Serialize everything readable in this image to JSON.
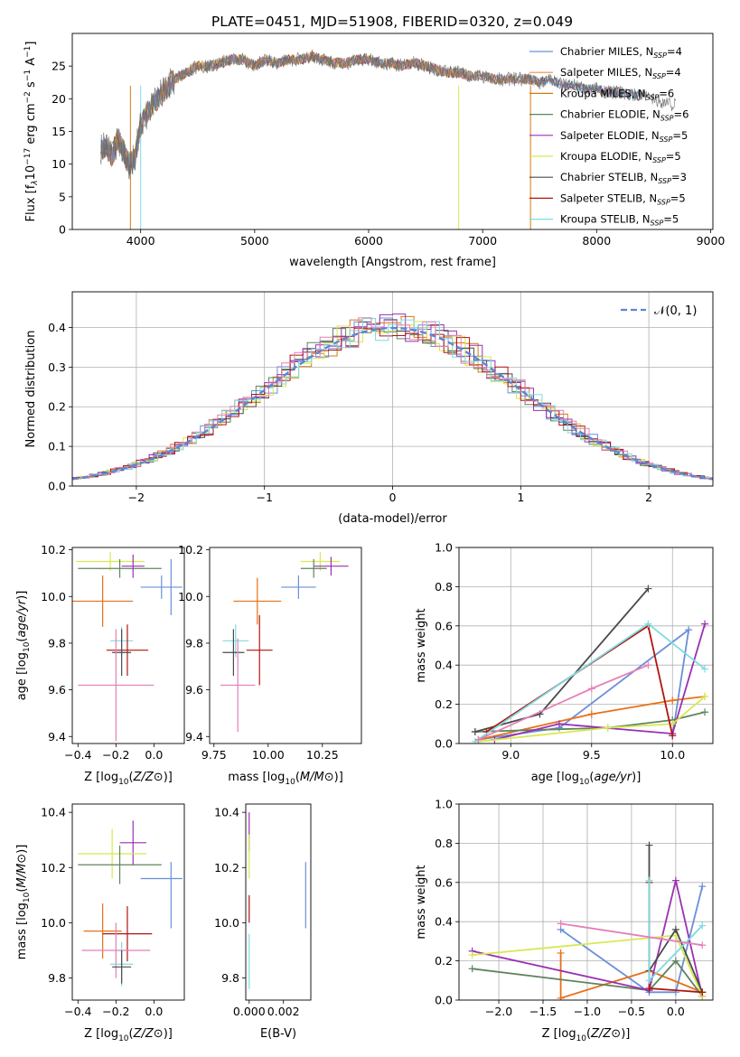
{
  "title": "PLATE=0451, MJD=51908, FIBERID=0320, z=0.049",
  "colors": [
    "#6a8fd8",
    "#ee8a45",
    "#d47a10",
    "#5f845f",
    "#9b2fb3",
    "#d8e84f",
    "#4b4b4b",
    "#b0150f",
    "#7edbe0",
    "#e57fb8",
    "#e87018"
  ],
  "chart_data": [
    {
      "type": "line",
      "panel": "spectrum",
      "title": "PLATE=0451, MJD=51908, FIBERID=0320, z=0.049",
      "xlabel": "wavelength [Angstrom, rest frame]",
      "ylabel_parts": [
        "Flux [f",
        "λ",
        "10",
        "−17",
        " erg cm",
        "−2",
        " s",
        "−1",
        " A",
        "−1",
        "]"
      ],
      "xlim": [
        3400,
        9020
      ],
      "ylim": [
        0,
        30
      ],
      "xticks": [
        "4000",
        "5000",
        "6000",
        "7000",
        "8000",
        "9000"
      ],
      "xtick_values": [
        4000,
        5000,
        6000,
        7000,
        8000,
        9000
      ],
      "yticks": [
        "0",
        "5",
        "10",
        "15",
        "20",
        "25"
      ],
      "ytick_values": [
        0,
        5,
        10,
        15,
        20,
        25
      ],
      "observed_flux": {
        "x": [
          3650,
          3700,
          3750,
          3800,
          3850,
          3900,
          3950,
          4000,
          4100,
          4200,
          4300,
          4400,
          4500,
          4600,
          4700,
          4800,
          4900,
          5000,
          5100,
          5200,
          5300,
          5400,
          5500,
          5600,
          5700,
          5800,
          5900,
          6000,
          6100,
          6200,
          6300,
          6400,
          6500,
          6600,
          6700,
          6800,
          6900,
          7000,
          7100,
          7200,
          7300,
          7400,
          7500,
          7600,
          7700,
          7800,
          7900,
          8000,
          8100,
          8200,
          8300,
          8400,
          8500,
          8600,
          8700
        ],
        "y": [
          12,
          13,
          11,
          14,
          12,
          10,
          11,
          16,
          19,
          21,
          23,
          24,
          25,
          25,
          25.5,
          26,
          26,
          25,
          26,
          25.5,
          26,
          26,
          26.5,
          26,
          25.5,
          25.5,
          26,
          26,
          25.5,
          25.5,
          25,
          25.5,
          25,
          24.5,
          24,
          24,
          23.5,
          23.5,
          23,
          23,
          23,
          23,
          22.5,
          23,
          22,
          22,
          21.5,
          21.5,
          21,
          21,
          20.5,
          20.5,
          20,
          19.5,
          19
        ]
      },
      "series": [
        {
          "name": "Chabrier MILES, N_SSP=4",
          "color": "#6a8fd8",
          "x_end": 8300
        },
        {
          "name": "Salpeter MILES, N_SSP=4",
          "color": "#ee8a45",
          "x_end": 7420
        },
        {
          "name": "Kroupa MILES, N_SSP=6",
          "color": "#d47a10",
          "x_end": 7420
        },
        {
          "name": "Chabrier ELODIE, N_SSP=6",
          "color": "#5f845f",
          "x_end": 6800
        },
        {
          "name": "Salpeter ELODIE, N_SSP=5",
          "color": "#9b2fb3",
          "x_end": 6800
        },
        {
          "name": "Kroupa ELODIE, N_SSP=5",
          "color": "#d8e84f",
          "x_end": 6800
        },
        {
          "name": "Chabrier STELIB, N_SSP=3",
          "color": "#4b4b4b",
          "x_end": 8300
        },
        {
          "name": "Salpeter STELIB, N_SSP=5",
          "color": "#b0150f",
          "x_end": 8300
        },
        {
          "name": "Kroupa STELIB, N_SSP=5",
          "color": "#7edbe0",
          "x_end": 8300
        }
      ],
      "legend": [
        {
          "pre": "Chabrier MILES, N",
          "sub": "SSP",
          "post": "=4",
          "color": "#6a8fd8"
        },
        {
          "pre": "Salpeter MILES, N",
          "sub": "SSP",
          "post": "=4",
          "color": "#ee8a45"
        },
        {
          "pre": "Kroupa MILES, N",
          "sub": "SSP",
          "post": "=6",
          "color": "#d47a10"
        },
        {
          "pre": "Chabrier ELODIE, N",
          "sub": "SSP",
          "post": "=6",
          "color": "#5f845f"
        },
        {
          "pre": "Salpeter ELODIE, N",
          "sub": "SSP",
          "post": "=5",
          "color": "#9b2fb3"
        },
        {
          "pre": "Kroupa ELODIE, N",
          "sub": "SSP",
          "post": "=5",
          "color": "#d8e84f"
        },
        {
          "pre": "Chabrier STELIB, N",
          "sub": "SSP",
          "post": "=3",
          "color": "#4b4b4b"
        },
        {
          "pre": "Salpeter STELIB, N",
          "sub": "SSP",
          "post": "=5",
          "color": "#b0150f"
        },
        {
          "pre": "Kroupa STELIB, N",
          "sub": "SSP",
          "post": "=5",
          "color": "#7edbe0"
        }
      ],
      "legend_placement": "upper-right",
      "grid": false
    },
    {
      "type": "histogram",
      "panel": "residuals",
      "xlabel": "(data-model)/error",
      "ylabel": "Normed distribution",
      "xlim": [
        -2.5,
        2.5
      ],
      "ylim": [
        0,
        0.49
      ],
      "xticks": [
        "−2",
        "−1",
        "0",
        "1",
        "2"
      ],
      "xtick_values": [
        -2,
        -1,
        0,
        1,
        2
      ],
      "yticks": [
        "0.0",
        "0.1",
        "0.2",
        "0.3",
        "0.4"
      ],
      "ytick_values": [
        0,
        0.1,
        0.2,
        0.3,
        0.4
      ],
      "grid": true,
      "reference_curve": {
        "name": "𝒩(0, 1)",
        "color": "#5b86d6",
        "style": "dashed",
        "function": "standard normal pdf"
      },
      "legend_placement": "upper-right",
      "series_colors": [
        "#6a8fd8",
        "#d47a10",
        "#5f845f",
        "#9b2fb3",
        "#d8e84f",
        "#4b4b4b",
        "#b0150f",
        "#7edbe0",
        "#e57fb8"
      ]
    },
    {
      "type": "scatter",
      "panel": "age-vs-Z",
      "xlabel": "Z [log10(Z/Z⊙)]",
      "ylabel": "age [log10(age/yr)]",
      "xlim": [
        -0.43,
        0.16
      ],
      "ylim": [
        9.37,
        10.21
      ],
      "xticks": [
        "−0.4",
        "−0.2",
        "0.0"
      ],
      "xtick_values": [
        -0.4,
        -0.2,
        0.0
      ],
      "yticks": [
        "9.4",
        "9.6",
        "9.8",
        "10.0",
        "10.2"
      ],
      "ytick_values": [
        9.4,
        9.6,
        9.8,
        10.0,
        10.2
      ],
      "points": [
        {
          "x": -0.23,
          "y": 10.15,
          "xerr": 0.18,
          "yerr": 0.04,
          "color": "#d8e84f"
        },
        {
          "x": -0.18,
          "y": 10.12,
          "xerr": 0.22,
          "yerr": 0.04,
          "color": "#5f845f"
        },
        {
          "x": -0.11,
          "y": 10.13,
          "xerr": 0.06,
          "yerr": 0.05,
          "color": "#9b2fb3"
        },
        {
          "x": 0.04,
          "y": 10.04,
          "xerr": 0.11,
          "yerr": 0.05,
          "color": "#6a8fd8"
        },
        {
          "x": 0.09,
          "y": 10.04,
          "xerr": 0.0,
          "yerr": 0.12,
          "color": "#6a8fd8"
        },
        {
          "x": -0.27,
          "y": 9.98,
          "xerr": 0.16,
          "yerr": 0.11,
          "color": "#e87018"
        },
        {
          "x": -0.17,
          "y": 9.81,
          "xerr": 0.06,
          "yerr": 0.06,
          "color": "#7edbe0"
        },
        {
          "x": -0.14,
          "y": 9.77,
          "xerr": 0.11,
          "yerr": 0.11,
          "color": "#b0150f"
        },
        {
          "x": -0.17,
          "y": 9.76,
          "xerr": 0.05,
          "yerr": 0.1,
          "color": "#4b4b4b"
        },
        {
          "x": -0.2,
          "y": 9.62,
          "xerr": 0.2,
          "yerr": 0.24,
          "color": "#e57fb8"
        }
      ]
    },
    {
      "type": "scatter",
      "panel": "age-vs-mass",
      "xlabel": "mass [log10(M/M⊙)]",
      "xlim": [
        9.73,
        10.43
      ],
      "ylim": [
        9.37,
        10.21
      ],
      "xticks": [
        "9.75",
        "10.00",
        "10.25"
      ],
      "xtick_values": [
        9.75,
        10.0,
        10.25
      ],
      "yticks": [
        "9.4",
        "9.6",
        "9.8",
        "10.0",
        "10.2"
      ],
      "ytick_values": [
        9.4,
        9.6,
        9.8,
        10.0,
        10.2
      ],
      "points": [
        {
          "x": 10.24,
          "y": 10.15,
          "xerr": 0.09,
          "yerr": 0.04,
          "color": "#d8e84f"
        },
        {
          "x": 10.29,
          "y": 10.13,
          "xerr": 0.08,
          "yerr": 0.04,
          "color": "#9b2fb3"
        },
        {
          "x": 10.21,
          "y": 10.12,
          "xerr": 0.06,
          "yerr": 0.04,
          "color": "#5f845f"
        },
        {
          "x": 10.14,
          "y": 10.04,
          "xerr": 0.08,
          "yerr": 0.05,
          "color": "#6a8fd8"
        },
        {
          "x": 9.95,
          "y": 9.98,
          "xerr": 0.11,
          "yerr": 0.1,
          "color": "#e87018"
        },
        {
          "x": 9.85,
          "y": 9.81,
          "xerr": 0.06,
          "yerr": 0.07,
          "color": "#7edbe0"
        },
        {
          "x": 9.96,
          "y": 9.77,
          "xerr": 0.06,
          "yerr": 0.15,
          "color": "#b0150f"
        },
        {
          "x": 9.84,
          "y": 9.76,
          "xerr": 0.05,
          "yerr": 0.1,
          "color": "#4b4b4b"
        },
        {
          "x": 9.86,
          "y": 9.62,
          "xerr": 0.08,
          "yerr": 0.2,
          "color": "#e57fb8"
        }
      ]
    },
    {
      "type": "line",
      "panel": "mass-weight-vs-age",
      "xlabel": "age [log10(age/yr)]",
      "ylabel": "mass weight",
      "xlim": [
        8.68,
        10.25
      ],
      "ylim": [
        0,
        1.0
      ],
      "xticks": [
        "9.0",
        "9.5",
        "10.0"
      ],
      "xtick_values": [
        9.0,
        9.5,
        10.0
      ],
      "yticks": [
        "0.0",
        "0.2",
        "0.4",
        "0.6",
        "0.8",
        "1.0"
      ],
      "ytick_values": [
        0,
        0.2,
        0.4,
        0.6,
        0.8,
        1.0
      ],
      "grid": true,
      "series": [
        {
          "color": "#6a8fd8",
          "x": [
            8.8,
            9.3,
            10.1,
            10.0
          ],
          "y": [
            0.02,
            0.08,
            0.58,
            0.04
          ]
        },
        {
          "color": "#e87018",
          "x": [
            8.8,
            9.5,
            10.0,
            10.2
          ],
          "y": [
            0.02,
            0.15,
            0.22,
            0.24
          ]
        },
        {
          "color": "#5f845f",
          "x": [
            8.78,
            9.6,
            10.0,
            10.2
          ],
          "y": [
            0.06,
            0.08,
            0.12,
            0.16
          ]
        },
        {
          "color": "#9b2fb3",
          "x": [
            8.9,
            9.3,
            10.0,
            10.2
          ],
          "y": [
            0.02,
            0.1,
            0.05,
            0.61
          ]
        },
        {
          "color": "#d8e84f",
          "x": [
            8.8,
            9.6,
            10.0,
            10.2
          ],
          "y": [
            0.01,
            0.08,
            0.1,
            0.24
          ]
        },
        {
          "color": "#4b4b4b",
          "x": [
            8.78,
            9.18,
            9.85
          ],
          "y": [
            0.06,
            0.15,
            0.79
          ]
        },
        {
          "color": "#b0150f",
          "x": [
            8.85,
            9.85,
            10.0
          ],
          "y": [
            0.06,
            0.6,
            0.04
          ]
        },
        {
          "color": "#7edbe0",
          "x": [
            8.78,
            9.85,
            10.2
          ],
          "y": [
            0.01,
            0.61,
            0.38
          ]
        },
        {
          "color": "#e57fb8",
          "x": [
            8.8,
            9.5,
            9.85
          ],
          "y": [
            0.02,
            0.28,
            0.4
          ]
        }
      ]
    },
    {
      "type": "scatter",
      "panel": "mass-vs-Z",
      "xlabel": "Z [log10(Z/Z⊙)]",
      "ylabel": "mass [log10(M/M⊙)]",
      "xlim": [
        -0.43,
        0.16
      ],
      "ylim": [
        9.72,
        10.43
      ],
      "xticks": [
        "−0.4",
        "−0.2",
        "0.0"
      ],
      "xtick_values": [
        -0.4,
        -0.2,
        0.0
      ],
      "yticks": [
        "9.8",
        "10.0",
        "10.2",
        "10.4"
      ],
      "ytick_values": [
        9.8,
        10.0,
        10.2,
        10.4
      ],
      "points": [
        {
          "x": -0.11,
          "y": 10.29,
          "xerr": 0.07,
          "yerr": 0.08,
          "color": "#9b2fb3"
        },
        {
          "x": -0.22,
          "y": 10.25,
          "xerr": 0.18,
          "yerr": 0.09,
          "color": "#d8e84f"
        },
        {
          "x": -0.18,
          "y": 10.21,
          "xerr": 0.22,
          "yerr": 0.07,
          "color": "#5f845f"
        },
        {
          "x": 0.04,
          "y": 10.16,
          "xerr": 0.11,
          "yerr": 0.0,
          "color": "#6a8fd8"
        },
        {
          "x": 0.09,
          "y": 10.1,
          "xerr": 0.0,
          "yerr": 0.12,
          "color": "#6a8fd8"
        },
        {
          "x": -0.27,
          "y": 9.97,
          "xerr": 0.1,
          "yerr": 0.1,
          "color": "#e87018"
        },
        {
          "x": -0.14,
          "y": 9.96,
          "xerr": 0.13,
          "yerr": 0.1,
          "color": "#b0150f"
        },
        {
          "x": -0.2,
          "y": 9.9,
          "xerr": 0.18,
          "yerr": 0.1,
          "color": "#e57fb8"
        },
        {
          "x": -0.17,
          "y": 9.85,
          "xerr": 0.06,
          "yerr": 0.08,
          "color": "#7edbe0"
        },
        {
          "x": -0.17,
          "y": 9.84,
          "xerr": 0.05,
          "yerr": 0.06,
          "color": "#4b4b4b"
        }
      ]
    },
    {
      "type": "scatter",
      "panel": "mass-vs-EBV",
      "xlabel": "E(B-V)",
      "xlim": [
        -0.0002,
        0.0036
      ],
      "ylim": [
        9.72,
        10.43
      ],
      "xticks": [
        "0.000",
        "0.002"
      ],
      "xtick_values": [
        0.0,
        0.002
      ],
      "yticks": [
        "9.8",
        "10.0",
        "10.2",
        "10.4"
      ],
      "ytick_values": [
        9.8,
        10.0,
        10.2,
        10.4
      ],
      "points": [
        {
          "x": 0.0,
          "y": 10.33,
          "xerr": 0.0,
          "yerr": 0.07,
          "color": "#9b2fb3"
        },
        {
          "x": 0.0,
          "y": 10.24,
          "xerr": 0.0,
          "yerr": 0.08,
          "color": "#d8e84f"
        },
        {
          "x": 0.0,
          "y": 10.05,
          "xerr": 0.0,
          "yerr": 0.05,
          "color": "#b0150f"
        },
        {
          "x": 0.0,
          "y": 9.86,
          "xerr": 0.0,
          "yerr": 0.1,
          "color": "#7edbe0"
        },
        {
          "x": 0.0033,
          "y": 10.1,
          "xerr": 0.0,
          "yerr": 0.12,
          "color": "#6a8fd8"
        }
      ]
    },
    {
      "type": "line",
      "panel": "mass-weight-vs-Z",
      "xlabel": "Z [log10(Z/Z⊙)]",
      "ylabel": "mass weight",
      "xlim": [
        -2.45,
        0.42
      ],
      "ylim": [
        0,
        1.0
      ],
      "xticks": [
        "−2.0",
        "−1.5",
        "−1.0",
        "−0.5",
        "0.0"
      ],
      "xtick_values": [
        -2.0,
        -1.5,
        -1.0,
        -0.5,
        0.0
      ],
      "yticks": [
        "0.0",
        "0.2",
        "0.4",
        "0.6",
        "0.8",
        "1.0"
      ],
      "ytick_values": [
        0,
        0.2,
        0.4,
        0.6,
        0.8,
        1.0
      ],
      "grid": true,
      "series": [
        {
          "color": "#6a8fd8",
          "x": [
            -1.3,
            -0.3,
            0.0,
            0.3
          ],
          "y": [
            0.36,
            0.04,
            0.04,
            0.58
          ]
        },
        {
          "color": "#e87018",
          "x": [
            -1.3,
            -1.3,
            -0.3,
            0.3
          ],
          "y": [
            0.24,
            0.01,
            0.15,
            0.04
          ]
        },
        {
          "color": "#5f845f",
          "x": [
            -2.3,
            -0.3,
            0.0,
            0.3
          ],
          "y": [
            0.16,
            0.05,
            0.2,
            0.02
          ]
        },
        {
          "color": "#9b2fb3",
          "x": [
            -2.3,
            -0.3,
            0.0,
            0.3
          ],
          "y": [
            0.25,
            0.05,
            0.61,
            0.02
          ]
        },
        {
          "color": "#d8e84f",
          "x": [
            -2.3,
            0.0,
            0.3
          ],
          "y": [
            0.23,
            0.33,
            0.02
          ]
        },
        {
          "color": "#4b4b4b",
          "x": [
            -0.3,
            -0.3,
            0.0,
            0.3
          ],
          "y": [
            0.79,
            0.15,
            0.36,
            0.04
          ]
        },
        {
          "color": "#b0150f",
          "x": [
            -0.3,
            -0.3,
            0.3
          ],
          "y": [
            0.6,
            0.06,
            0.04
          ]
        },
        {
          "color": "#7edbe0",
          "x": [
            -0.3,
            -0.3,
            0.3
          ],
          "y": [
            0.61,
            0.1,
            0.38
          ]
        },
        {
          "color": "#e57fb8",
          "x": [
            -1.3,
            0.3
          ],
          "y": [
            0.39,
            0.28
          ]
        }
      ]
    }
  ]
}
